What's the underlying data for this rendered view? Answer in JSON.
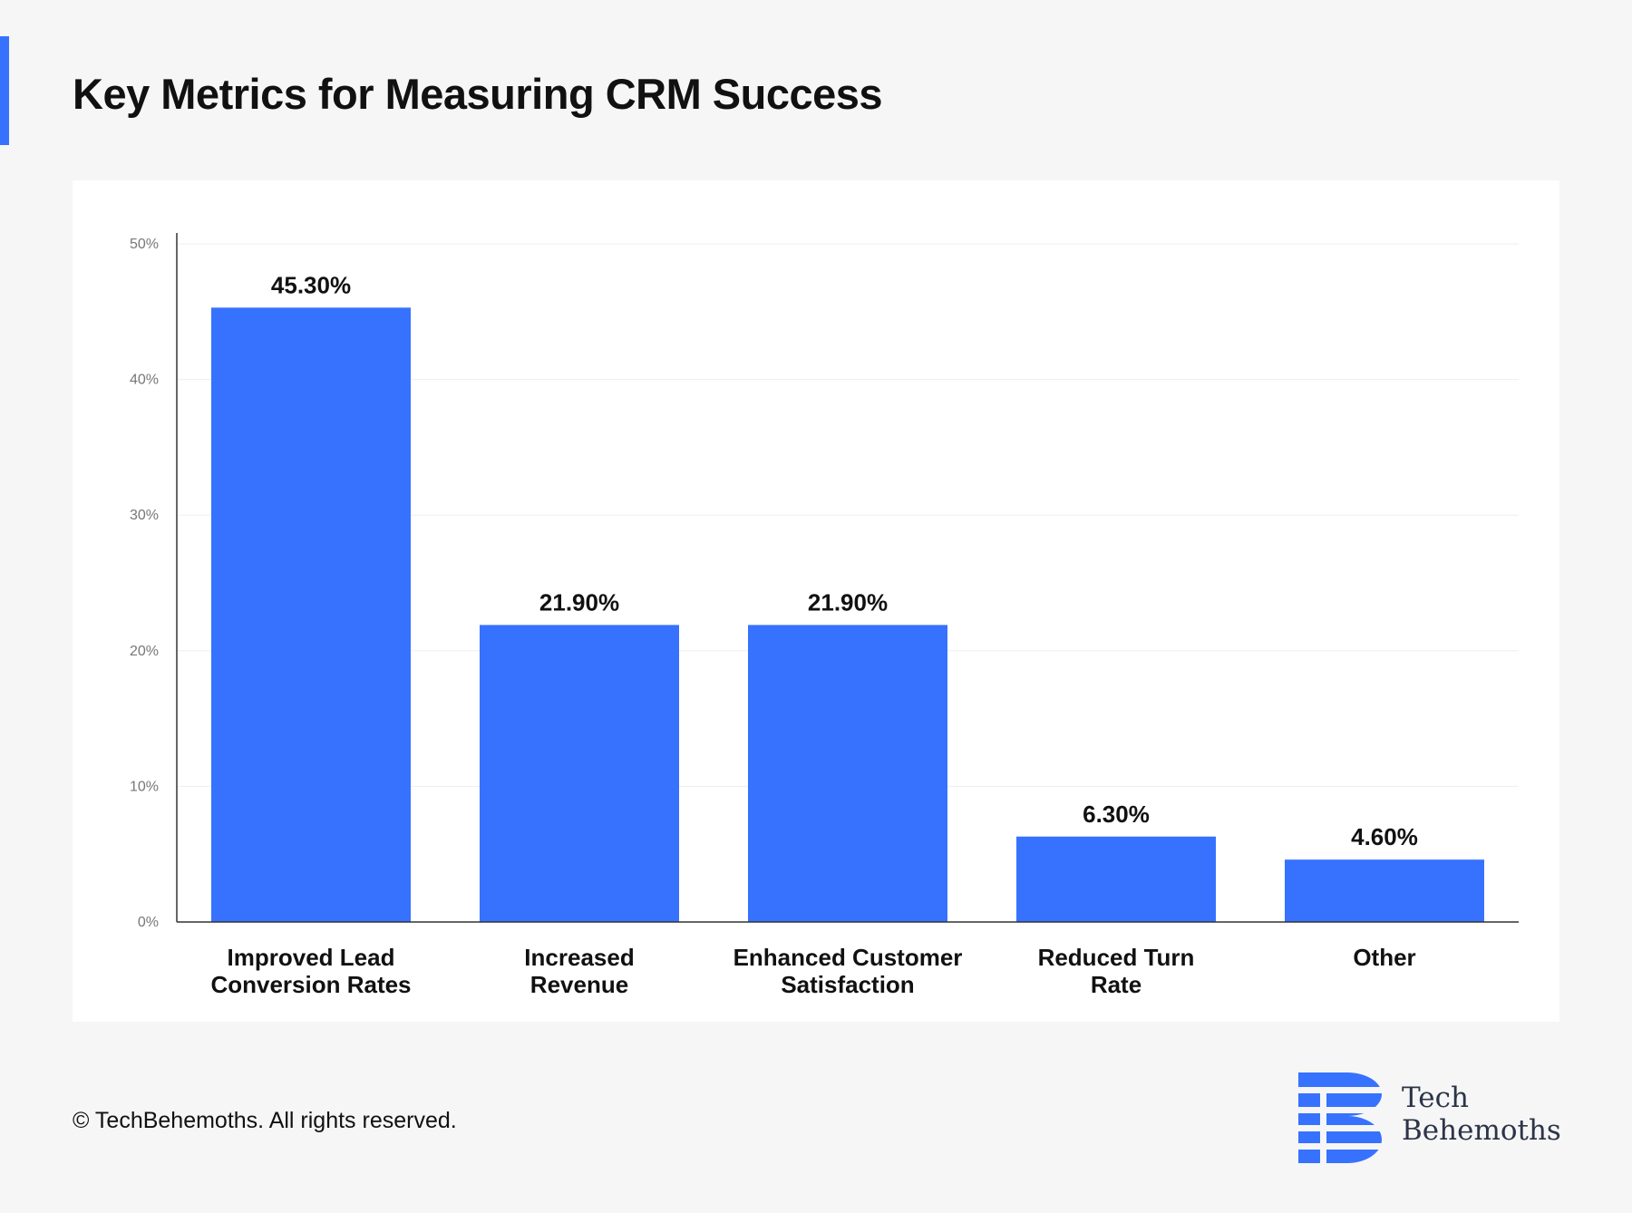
{
  "header": {
    "title": "Key Metrics for Measuring CRM Success"
  },
  "footer": {
    "copyright": "© TechBehemoths. All rights reserved."
  },
  "brand": {
    "name_line1": "Tech",
    "name_line2": "Behemoths",
    "icon": "techbehemoths-logo-icon"
  },
  "colors": {
    "accent": "#3772ff",
    "bar": "#3772ff",
    "title": "#111111",
    "background": "#f6f6f6"
  },
  "chart_data": {
    "type": "bar",
    "title": "",
    "xlabel": "",
    "ylabel": "",
    "categories": [
      [
        "Improved Lead",
        "Conversion Rates"
      ],
      [
        "Increased",
        "Revenue"
      ],
      [
        "Enhanced Customer",
        "Satisfaction"
      ],
      [
        "Reduced Turn",
        "Rate"
      ],
      [
        "Other"
      ]
    ],
    "values": [
      45.3,
      21.9,
      21.9,
      6.3,
      4.6
    ],
    "value_labels": [
      "45.30%",
      "21.90%",
      "21.90%",
      "6.30%",
      "4.60%"
    ],
    "ylim": [
      0,
      50
    ],
    "yticks": [
      0,
      10,
      20,
      30,
      40,
      50
    ],
    "ytick_labels": [
      "0%",
      "10%",
      "20%",
      "30%",
      "40%",
      "50%"
    ],
    "grid": true,
    "legend": "none"
  }
}
